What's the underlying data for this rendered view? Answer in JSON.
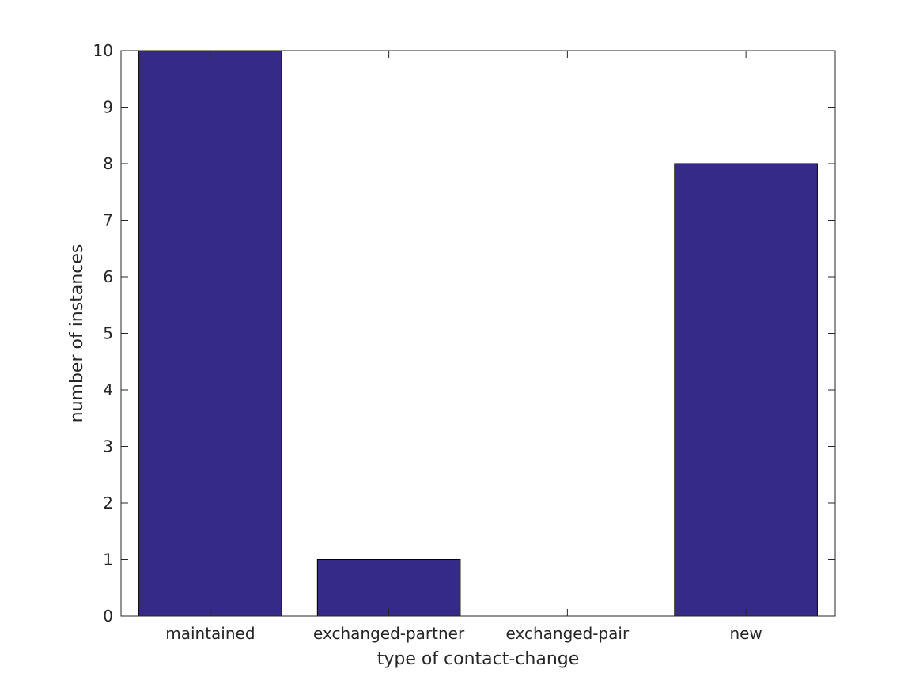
{
  "chart_data": {
    "type": "bar",
    "categories": [
      "maintained",
      "exchanged-partner",
      "exchanged-pair",
      "new"
    ],
    "values": [
      10,
      1,
      0,
      8
    ],
    "xlabel": "type of contact-change",
    "ylabel": "number of instances",
    "ylim": [
      0,
      10
    ],
    "yticks": [
      "0",
      "1",
      "2",
      "3",
      "4",
      "5",
      "6",
      "7",
      "8",
      "9",
      "10"
    ],
    "bar_color": "#352a87",
    "grid": false,
    "legend": "none"
  }
}
